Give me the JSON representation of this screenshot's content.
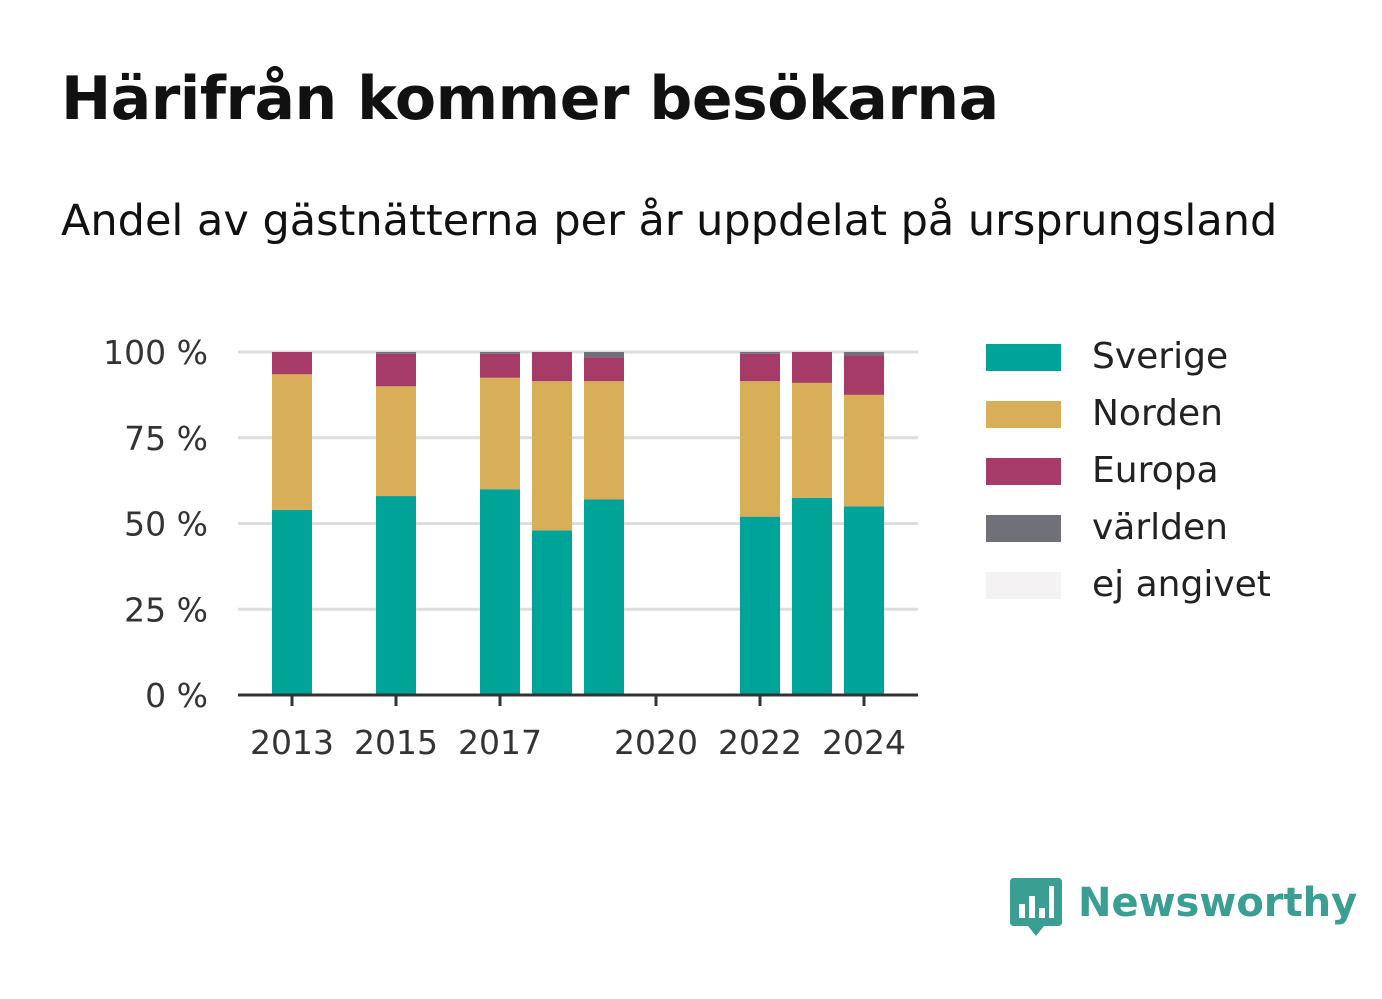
{
  "title": "Härifrån kommer besökarna",
  "subtitle": "Andel av gästnätterna per år uppdelat på ursprungsland",
  "brand": {
    "name": "Newsworthy",
    "icon": "newsworthy-logo-icon",
    "color": "#3a9e93"
  },
  "chart_data": {
    "type": "bar",
    "stacked": true,
    "x": [
      2013,
      2015,
      2017,
      2018,
      2019,
      2022,
      2023,
      2024
    ],
    "x_ticks": [
      "2013",
      "2015",
      "2017",
      "2020",
      "2022",
      "2024"
    ],
    "x_range": [
      2012,
      2025
    ],
    "y_ticks": [
      "0 %",
      "25 %",
      "50 %",
      "75 %",
      "100 %"
    ],
    "ylim": [
      0,
      100
    ],
    "grid": true,
    "legend_position": "right",
    "series": [
      {
        "name": "Sverige",
        "color": "#00a398",
        "values": [
          54,
          58,
          60,
          48,
          57,
          52,
          57.5,
          55
        ]
      },
      {
        "name": "Norden",
        "color": "#d9ae59",
        "values": [
          39.5,
          32,
          32.5,
          43.5,
          34.5,
          39.5,
          33.5,
          32.5
        ]
      },
      {
        "name": "Europa",
        "color": "#a63b67",
        "values": [
          6.5,
          9.5,
          7,
          8.5,
          7,
          8,
          9,
          11.5
        ]
      },
      {
        "name": "världen",
        "color": "#707078",
        "values": [
          0,
          0.5,
          0.5,
          0,
          1.5,
          0.5,
          0,
          1
        ]
      },
      {
        "name": "ej angivet",
        "color": "#f4f2f2",
        "values": [
          0,
          0,
          0,
          0,
          0,
          0,
          0,
          0
        ]
      }
    ]
  }
}
